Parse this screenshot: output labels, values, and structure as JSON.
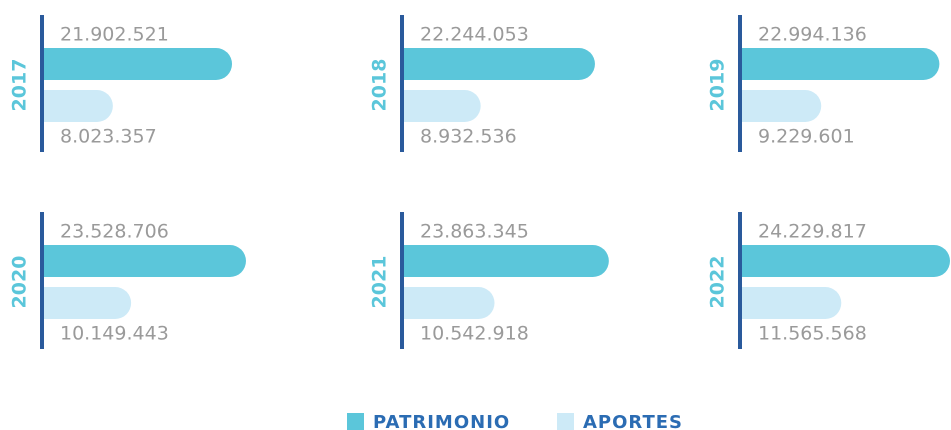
{
  "chart_data": {
    "type": "bar",
    "categories": [
      "2017",
      "2018",
      "2019",
      "2020",
      "2021",
      "2022"
    ],
    "series": [
      {
        "name": "PATRIMONIO",
        "color": "#5bc6da",
        "values": [
          21902521,
          22244053,
          22994136,
          23528706,
          23863345,
          24229817
        ],
        "value_labels": [
          "21.902.521",
          "22.244.053",
          "22.994.136",
          "23.528.706",
          "23.863.345",
          "24.229.817"
        ]
      },
      {
        "name": "APORTES",
        "color": "#cdeaf7",
        "values": [
          8023357,
          8932536,
          9229601,
          10149443,
          10542918,
          11565568
        ],
        "value_labels": [
          "8.023.357",
          "8.932.536",
          "9.229.601",
          "10.149.443",
          "10.542.918",
          "11.565.568"
        ]
      }
    ]
  }
}
